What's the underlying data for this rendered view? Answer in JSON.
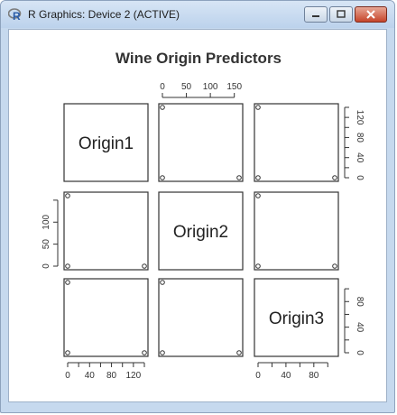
{
  "window": {
    "title": "R Graphics: Device 2 (ACTIVE)"
  },
  "chart_data": {
    "type": "scatter",
    "title": "Wine Origin Predictors",
    "variables": [
      "Origin1",
      "Origin2",
      "Origin3"
    ],
    "ranges": {
      "Origin1": [
        0,
        140
      ],
      "Origin2": [
        0,
        160
      ],
      "Origin3": [
        0,
        110
      ]
    },
    "observations": [
      {
        "Origin1": 140,
        "Origin2": 0,
        "Origin3": 0
      },
      {
        "Origin1": 0,
        "Origin2": 160,
        "Origin3": 0
      },
      {
        "Origin1": 0,
        "Origin2": 0,
        "Origin3": 110
      }
    ],
    "axes": {
      "top": {
        "variable": "Origin2",
        "ticks": [
          "0",
          "50",
          "100",
          "150"
        ]
      },
      "right1": {
        "variable": "Origin1",
        "ticks": [
          "0",
          "20",
          "40",
          "60",
          "80",
          "100",
          "120",
          "140"
        ],
        "labels": [
          "0",
          "40",
          "80",
          "120"
        ]
      },
      "left": {
        "variable": "Origin2",
        "ticks": [
          "0",
          "50",
          "100",
          "150"
        ],
        "labels": [
          "0",
          "50",
          "100"
        ]
      },
      "right3": {
        "variable": "Origin3",
        "ticks": [
          "0",
          "20",
          "40",
          "60",
          "80",
          "100"
        ],
        "labels": [
          "0",
          "40",
          "80"
        ]
      },
      "bottom1": {
        "variable": "Origin1",
        "ticks": [
          "0",
          "20",
          "40",
          "60",
          "80",
          "100",
          "120",
          "140"
        ],
        "labels": [
          "0",
          "40",
          "80",
          "120"
        ]
      },
      "bottom3": {
        "variable": "Origin3",
        "ticks": [
          "0",
          "20",
          "40",
          "60",
          "80",
          "100"
        ],
        "labels": [
          "0",
          "40",
          "80"
        ]
      }
    },
    "grid": false,
    "legend": "none"
  },
  "colors": {
    "titlebar": "#c6d9ee",
    "close_button": "#c6452a",
    "ink": "#333333"
  },
  "icons": {
    "app": "r-logo-icon",
    "minimize": "minimize-icon",
    "maximize": "maximize-icon",
    "close": "close-icon"
  }
}
